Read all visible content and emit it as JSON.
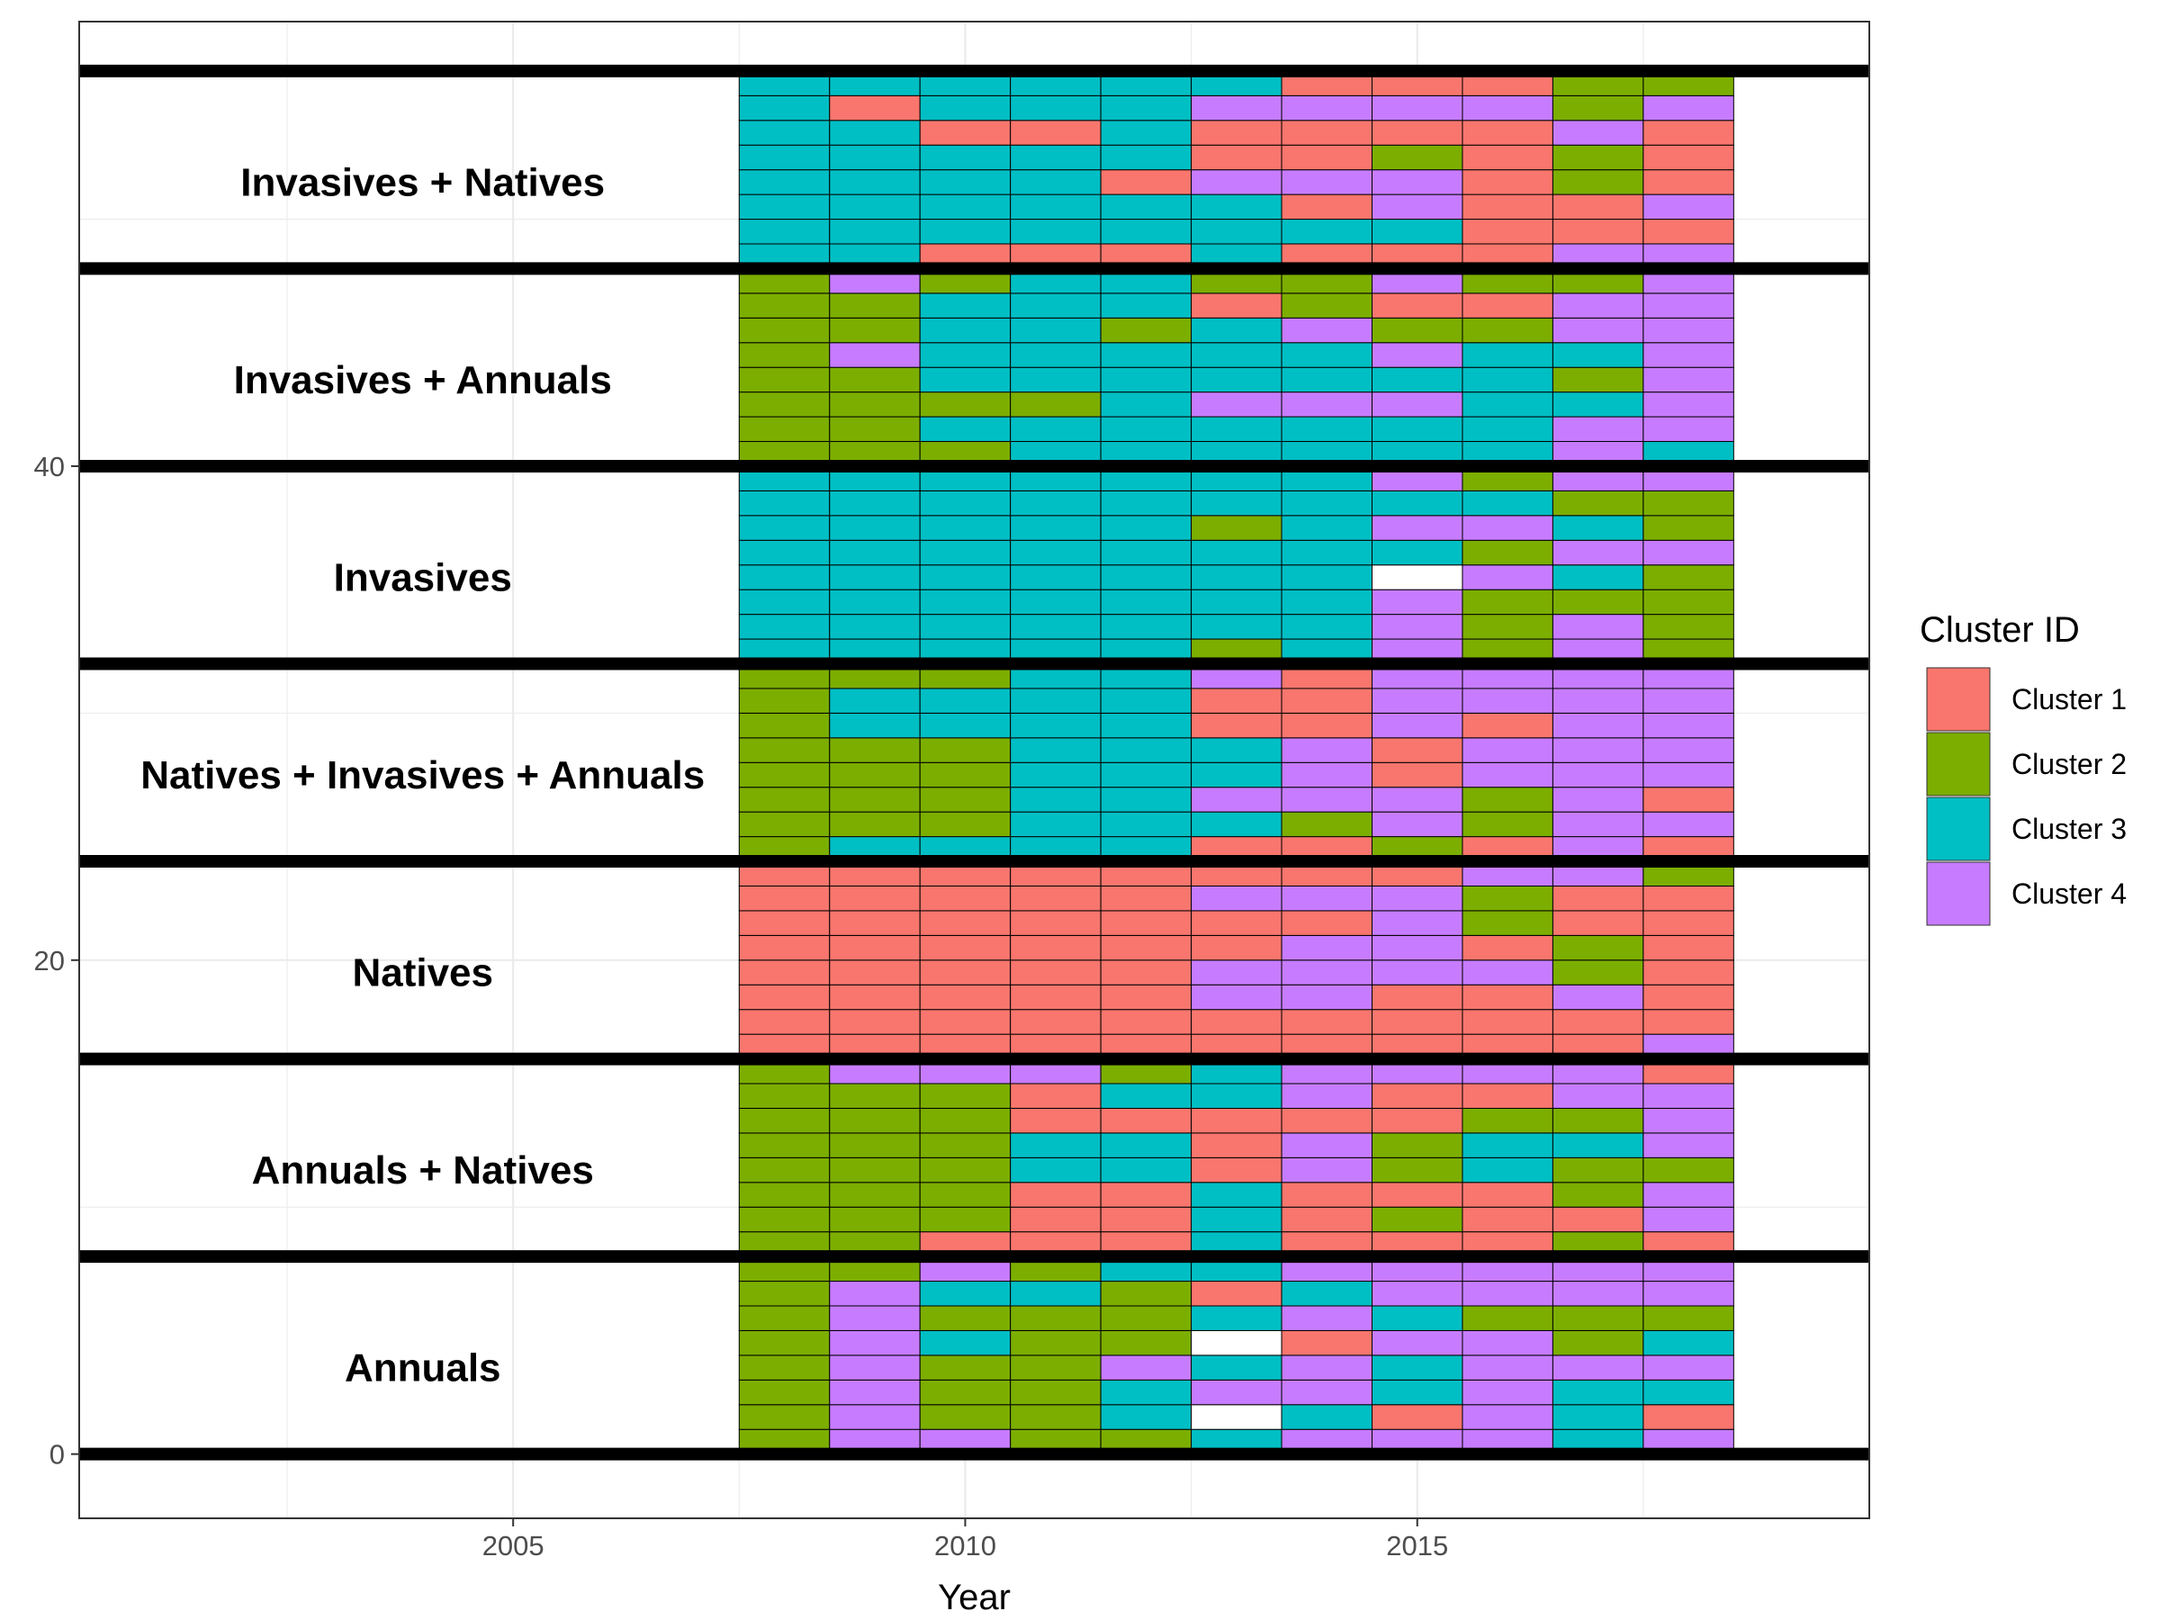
{
  "chart_data": {
    "type": "heatmap",
    "xlabel": "Year",
    "ylabel": "",
    "xlim": [
      2000.2,
      2020.0
    ],
    "ylim": [
      -2.6,
      58.0
    ],
    "x_ticks": [
      2005,
      2010,
      2015
    ],
    "y_ticks": [
      0,
      20,
      40
    ],
    "years": [
      2008,
      2009,
      2010,
      2011,
      2012,
      2013,
      2014,
      2015,
      2016,
      2017,
      2018
    ],
    "tile_height": 1,
    "legend": {
      "title": "Cluster ID",
      "position": "right",
      "entries": [
        {
          "key": "1",
          "label": "Cluster 1",
          "color": "#F8766D"
        },
        {
          "key": "2",
          "label": "Cluster 2",
          "color": "#7CAE00"
        },
        {
          "key": "3",
          "label": "Cluster 3",
          "color": "#00BFC4"
        },
        {
          "key": "4",
          "label": "Cluster 4",
          "color": "#C77CFF"
        }
      ]
    },
    "missing_color": "#FFFFFF",
    "separator_lines_y": [
      0,
      8,
      16,
      24,
      32,
      40,
      48,
      56
    ],
    "group_label_x": 2004.0,
    "groups": [
      {
        "label": "Annuals",
        "y_start": 0,
        "label_y": 3.5,
        "rows": [
          "24422344434",
          "24223031431",
          "24223443433",
          "24224343444",
          "24322014423",
          "24222343222",
          "24332134444",
          "22423344444"
        ]
      },
      {
        "label": "Annuals + Natives",
        "y_start": 8,
        "label_y": 11.5,
        "rows": [
          "22111311121",
          "22211312114",
          "22211311124",
          "22233142322",
          "22233142334",
          "22211111224",
          "22213341144",
          "24442344441"
        ]
      },
      {
        "label": "Natives",
        "y_start": 16,
        "label_y": 19.5,
        "rows": [
          "11111111114",
          "11111111111",
          "11111441141",
          "11111444421",
          "11111144121",
          "11111114211",
          "11111444211",
          "11111111442"
        ]
      },
      {
        "label": "Natives + Invasives + Annuals",
        "y_start": 24,
        "label_y": 27.5,
        "rows": [
          "23333112141",
          "22233324244",
          "22233444241",
          "22233341444",
          "22233341444",
          "23333114144",
          "23333114444",
          "22233414444"
        ]
      },
      {
        "label": "Invasives",
        "y_start": 32,
        "label_y": 35.5,
        "rows": [
          "33333234242",
          "33333334242",
          "33333334222",
          "33333330432",
          "33333333244",
          "33333234432",
          "33333333322",
          "33333334244"
        ]
      },
      {
        "label": "Invasives + Annuals",
        "y_start": 40,
        "label_y": 43.5,
        "rows": [
          "22233333343",
          "22333333344",
          "22223444334",
          "22333333324",
          "24333334334",
          "22332342244",
          "22333121144",
          "24233224224"
        ]
      },
      {
        "label": "Invasives + Natives",
        "y_start": 48,
        "label_y": 51.5,
        "rows": [
          "33111311144",
          "33333333111",
          "33333314114",
          "33331444121",
          "33333112121",
          "33113111141",
          "31333444424",
          "33333311122"
        ]
      }
    ]
  }
}
